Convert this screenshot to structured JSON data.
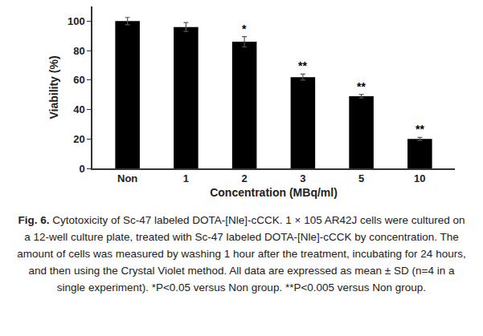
{
  "chart_data": {
    "type": "bar",
    "x_label": "Concentration (MBq/ml)",
    "y_label": "Viability (%)",
    "categories": [
      "Non",
      "1",
      "2",
      "3",
      "5",
      "10"
    ],
    "values": [
      100,
      96,
      86,
      62,
      49,
      20
    ],
    "errors": [
      2.5,
      3,
      3.5,
      2,
      1.2,
      1
    ],
    "color": "#000000",
    "ylim": [
      0,
      110
    ],
    "yticks": [
      0,
      20,
      40,
      60,
      80,
      100
    ],
    "grid": false,
    "annotations": [
      {
        "category": "2",
        "text": "*"
      },
      {
        "category": "3",
        "text": "**"
      },
      {
        "category": "5",
        "text": "**"
      },
      {
        "category": "10",
        "text": "**"
      }
    ],
    "caption": {
      "label": "Fig. 6.",
      "text": "Cytotoxicity of Sc-47 labeled DOTA-[Nle]-cCCK. 1 × 105 AR42J cells were cultured on a 12-well culture plate, treated with Sc-47 labeled DOTA-[Nle]-cCCK by concentration. The amount of cells was measured by washing 1 hour after the treatment, incubating for 24 hours, and then using the Crystal Violet method. All data are expressed as mean ± SD (n=4 in a single experiment). *P<0.05 versus Non group. **P<0.005 versus Non group."
    }
  }
}
